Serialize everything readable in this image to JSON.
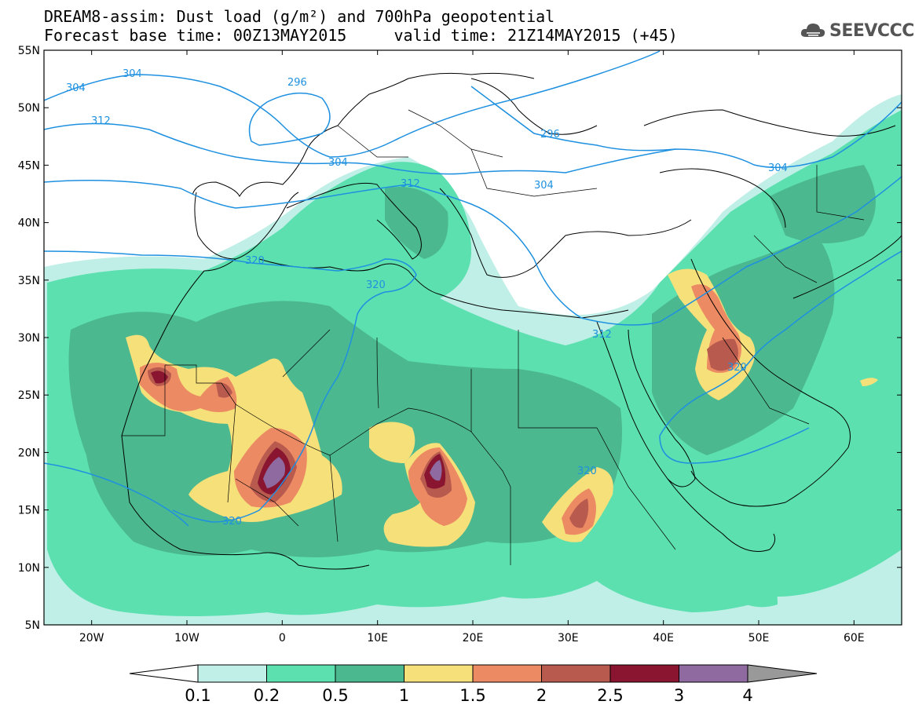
{
  "title_line1": "DREAM8-assim: Dust load (g/m²) and 700hPa geopotential",
  "title_line2": "Forecast base time: 00Z13MAY2015     valid time: 21Z14MAY2015 (+45)",
  "logo": {
    "text": "SEEVCCC",
    "icon": "cloud-icon"
  },
  "map": {
    "lon_range": [
      -25,
      65
    ],
    "lat_range": [
      5,
      55
    ],
    "lat_ticks": [
      "55N",
      "50N",
      "45N",
      "40N",
      "35N",
      "30N",
      "25N",
      "20N",
      "15N",
      "10N",
      "5N"
    ],
    "lon_ticks": [
      "20W",
      "10W",
      "0",
      "10E",
      "20E",
      "30E",
      "40E",
      "50E",
      "60E"
    ],
    "contour_color": "#1e90e0",
    "contour_labels": [
      "304",
      "304",
      "296",
      "312",
      "304",
      "296",
      "312",
      "304",
      "304",
      "320",
      "320",
      "312",
      "320",
      "320",
      "320"
    ]
  },
  "colorbar": {
    "labels": [
      "0.1",
      "0.2",
      "0.5",
      "1",
      "1.5",
      "2",
      "2.5",
      "3",
      "4"
    ],
    "colors": [
      "#bfefe6",
      "#5ce0b0",
      "#4cb890",
      "#f5e07a",
      "#ec8a64",
      "#b85a4e",
      "#8a1530",
      "#8e6aa0"
    ],
    "under_color": "#ffffff",
    "over_color": "#999999"
  },
  "chart_data": {
    "type": "map",
    "variable": "Dust load (g/m²)",
    "overlay": "700hPa geopotential",
    "levels": [
      0.1,
      0.2,
      0.5,
      1,
      1.5,
      2,
      2.5,
      3,
      4
    ],
    "geopotential_contours": [
      296,
      304,
      312,
      320
    ]
  }
}
